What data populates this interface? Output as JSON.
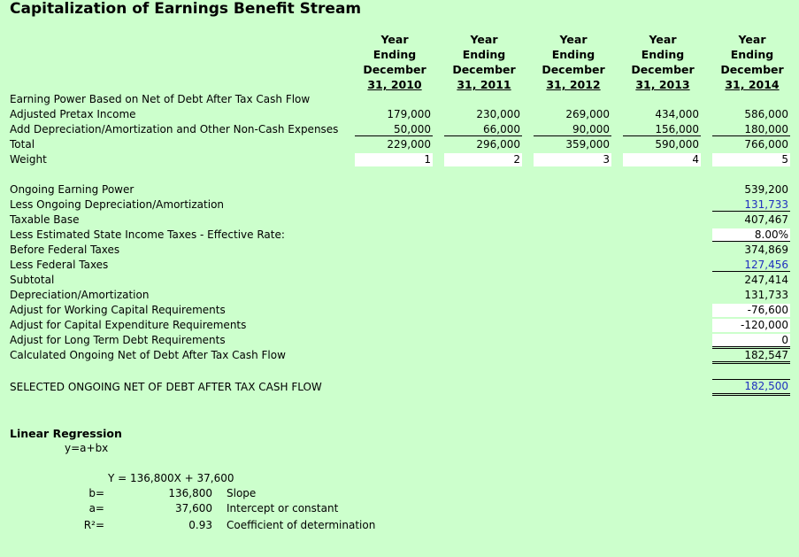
{
  "title": "Capitalization of Earnings Benefit Stream",
  "headers": [
    {
      "l1": "Year",
      "l2": "Ending",
      "l3": "December",
      "l4": "31, 2010"
    },
    {
      "l1": "Year",
      "l2": "Ending",
      "l3": "December",
      "l4": "31, 2011"
    },
    {
      "l1": "Year",
      "l2": "Ending",
      "l3": "December",
      "l4": "31, 2012"
    },
    {
      "l1": "Year",
      "l2": "Ending",
      "l3": "December",
      "l4": "31, 2013"
    },
    {
      "l1": "Year",
      "l2": "Ending",
      "l3": "December",
      "l4": "31, 2014"
    }
  ],
  "top": {
    "section_label": "Earning Power Based on Net of Debt After Tax Cash Flow",
    "rows": [
      {
        "label": "Adjusted Pretax Income",
        "values": [
          "179,000",
          "230,000",
          "269,000",
          "434,000",
          "586,000"
        ]
      },
      {
        "label": "Add Depreciation/Amortization and Other Non-Cash Expenses",
        "values": [
          "50,000",
          "66,000",
          "90,000",
          "156,000",
          "180,000"
        ]
      },
      {
        "label": "Total",
        "values": [
          "229,000",
          "296,000",
          "359,000",
          "590,000",
          "766,000"
        ]
      },
      {
        "label": "Weight",
        "values": [
          "1",
          "2",
          "3",
          "4",
          "5"
        ]
      }
    ]
  },
  "calc": [
    {
      "label": "Ongoing Earning Power",
      "value": "539,200"
    },
    {
      "label": "Less Ongoing Depreciation/Amortization",
      "value": "131,733"
    },
    {
      "label": "Taxable Base",
      "value": "407,467"
    },
    {
      "label": "Less Estimated State Income Taxes - Effective Rate:",
      "value": "8.00%"
    },
    {
      "label": "Before Federal Taxes",
      "value": "374,869"
    },
    {
      "label": "Less Federal Taxes",
      "value": "127,456"
    },
    {
      "label": "Subtotal",
      "value": "247,414"
    },
    {
      "label": "Depreciation/Amortization",
      "value": "131,733"
    },
    {
      "label": "Adjust for Working Capital Requirements",
      "value": "-76,600"
    },
    {
      "label": "Adjust for Capital Expenditure Requirements",
      "value": "-120,000"
    },
    {
      "label": "Adjust for Long Term Debt Requirements",
      "value": "0"
    },
    {
      "label": "Calculated Ongoing Net of Debt After Tax Cash Flow",
      "value": "182,547"
    }
  ],
  "selected": {
    "label": "SELECTED ONGOING NET OF DEBT AFTER TAX CASH FLOW",
    "value": "182,500"
  },
  "regression": {
    "title": "Linear Regression",
    "formula": "y=a+bx",
    "equation": "Y = 136,800X + 37,600",
    "b_label": "b=",
    "b_value": "136,800",
    "b_desc": "Slope",
    "a_label": "a=",
    "a_value": "37,600",
    "a_desc": "Intercept or constant",
    "r_label": "R²=",
    "r_value": "0.93",
    "r_desc": "Coefficient of determination"
  }
}
